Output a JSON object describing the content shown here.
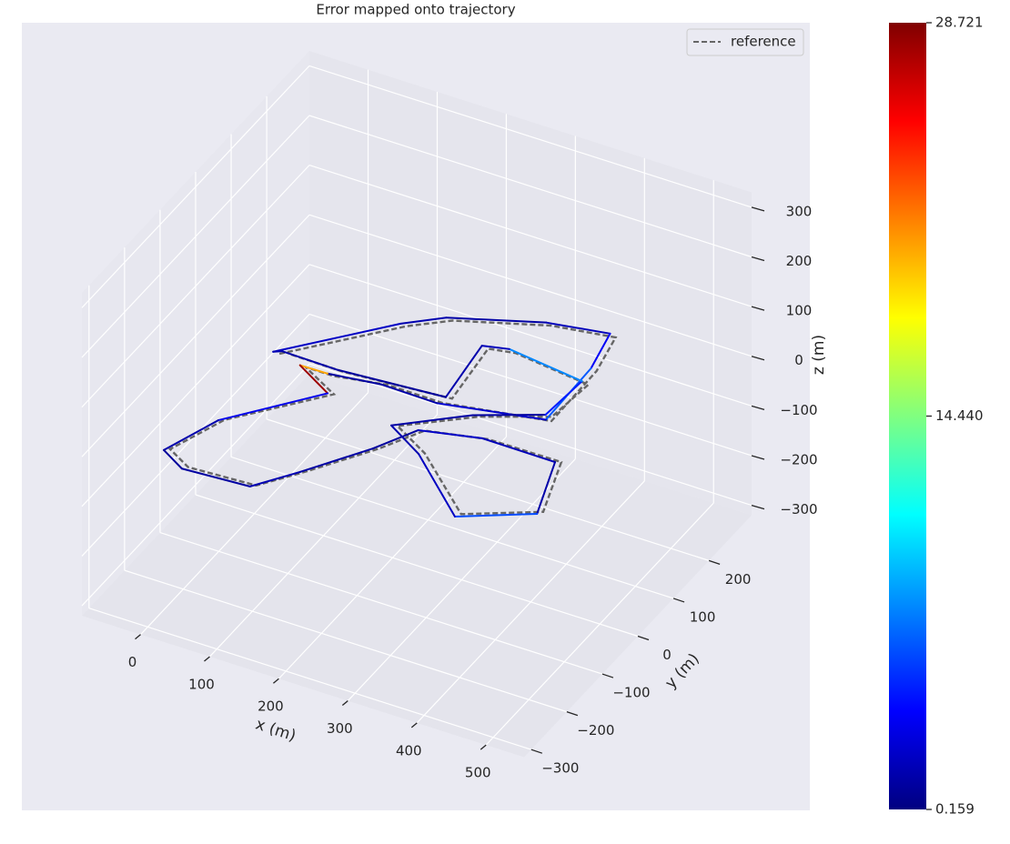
{
  "chart_data": {
    "type": "line3d",
    "title": "Error mapped onto trajectory",
    "xlabel": "x (m)",
    "ylabel": "y (m)",
    "zlabel": "z (m)",
    "xlim": [
      -85,
      555
    ],
    "ylim": [
      -320,
      320
    ],
    "zlim": [
      -320,
      330
    ],
    "xticks": [
      0,
      100,
      200,
      300,
      400,
      500
    ],
    "yticks": [
      {
        "value": -300,
        "label": "−300"
      },
      {
        "value": -200,
        "label": "−200"
      },
      {
        "value": -100,
        "label": "−100"
      },
      0,
      100,
      200
    ],
    "zticks": [
      {
        "value": -300,
        "label": "−300"
      },
      {
        "value": -200,
        "label": "−200"
      },
      {
        "value": -100,
        "label": "−100"
      },
      0,
      100,
      200,
      300
    ],
    "legend": "upper right",
    "series": [
      {
        "name": "reference",
        "color": "#666666",
        "linestyle": "dashed",
        "x": [
          27,
          140,
          185,
          300,
          384,
          398,
          400,
          260,
          180,
          110,
          70,
          130,
          35,
          5,
          44,
          139,
          180,
          237,
          269,
          349,
          454,
          486,
          397,
          293,
          234,
          315,
          396,
          403,
          289,
          254,
          266,
          117,
          37
        ],
        "y": [
          18,
          157,
          198,
          252,
          270,
          189,
          58,
          24,
          25,
          8,
          8,
          -29,
          -152,
          -247,
          -272,
          -265,
          -204,
          -110,
          -44,
          -20,
          -19,
          -132,
          -190,
          -90,
          -52,
          20,
          67,
          156,
          173,
          164,
          39,
          23,
          24
        ],
        "z": [
          0,
          0,
          0,
          0,
          0,
          0,
          0,
          0,
          0,
          0,
          0,
          0,
          0,
          0,
          0,
          0,
          0,
          0,
          0,
          0,
          0,
          0,
          0,
          0,
          0,
          0,
          0,
          0,
          0,
          0,
          0,
          0,
          0
        ]
      }
    ],
    "trajectory": {
      "x": [
        19,
        132,
        177,
        294,
        377,
        391,
        393,
        253,
        173,
        103,
        63,
        122,
        27,
        -3,
        36,
        131,
        172,
        229,
        261,
        341,
        446,
        478,
        389,
        285,
        226,
        307,
        388,
        395,
        281,
        246,
        258,
        109,
        29
      ],
      "y": [
        16,
        155,
        196,
        250,
        268,
        187,
        56,
        22,
        23,
        6,
        6,
        -31,
        -154,
        -249,
        -274,
        -267,
        -206,
        -112,
        -46,
        -22,
        -21,
        -134,
        -192,
        -92,
        -54,
        18,
        65,
        154,
        171,
        162,
        37,
        21,
        22
      ],
      "z": [
        2,
        3,
        4,
        5,
        6,
        4,
        1,
        -2,
        -1,
        3,
        2,
        0,
        -3,
        -4,
        -5,
        -4,
        -3,
        -2,
        -1,
        0,
        -2,
        -6,
        -7,
        -3,
        -1,
        1,
        2,
        5,
        6,
        4,
        1,
        2,
        3
      ],
      "error": [
        2.1,
        1.5,
        1.2,
        1.8,
        3.5,
        6.2,
        2.4,
        1.3,
        1.1,
        20.5,
        27.9,
        3.2,
        1.4,
        0.9,
        1.1,
        1.6,
        1.2,
        1.0,
        2.2,
        1.7,
        1.3,
        5.8,
        2.0,
        1.5,
        1.2,
        1.1,
        4.5,
        7.5,
        1.8,
        1.4,
        1.0,
        1.3,
        1.6
      ]
    },
    "colorbar": {
      "colormap": "jet",
      "lim": [
        0.159,
        28.721
      ],
      "ticks": [
        0.159,
        {
          "value": 14.44,
          "label": "14.440"
        },
        28.721
      ]
    }
  }
}
